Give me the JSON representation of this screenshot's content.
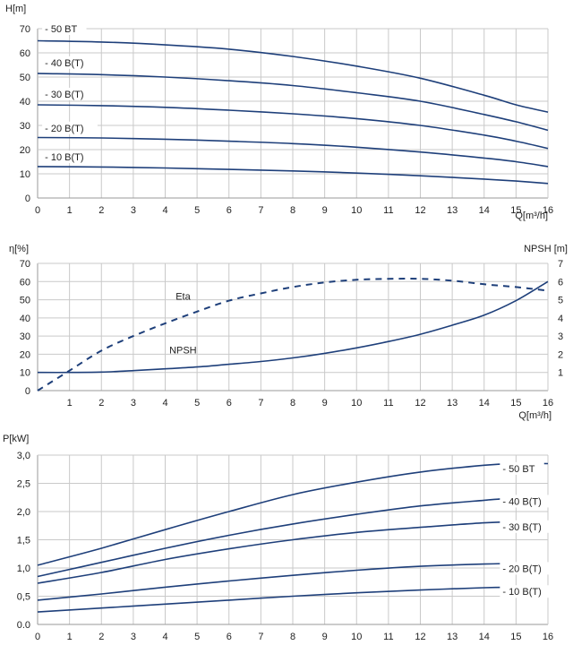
{
  "colors": {
    "curve": "#1e3f7a",
    "grid": "#c9c9c9",
    "text": "#222222"
  },
  "chart_data": [
    {
      "type": "line",
      "ylabel": "H[m]",
      "xlabel": "Q[m³/h]",
      "xlim": [
        0,
        16
      ],
      "ylim": [
        0,
        70
      ],
      "xticks": [
        "0",
        "1",
        "2",
        "3",
        "4",
        "5",
        "6",
        "7",
        "8",
        "9",
        "10",
        "11",
        "12",
        "13",
        "14",
        "15",
        "16"
      ],
      "yticks": [
        "0",
        "10",
        "20",
        "30",
        "40",
        "50",
        "60",
        "70"
      ],
      "grid": true,
      "series": [
        {
          "name": "- 50 BT",
          "x": [
            0,
            2,
            4,
            6,
            8,
            10,
            12,
            14,
            15,
            16
          ],
          "y": [
            65,
            64.5,
            63.3,
            61.5,
            58.5,
            54.5,
            49.5,
            42.5,
            38.5,
            35.5
          ],
          "label_x": 0.2,
          "label_y": 68.5
        },
        {
          "name": "- 40 B(T)",
          "x": [
            0,
            2,
            4,
            6,
            8,
            10,
            12,
            14,
            15,
            16
          ],
          "y": [
            51.5,
            51,
            50,
            48.5,
            46.5,
            43.5,
            40,
            34.5,
            31.5,
            28
          ],
          "label_x": 0.2,
          "label_y": 54.5
        },
        {
          "name": "- 30 B(T)",
          "x": [
            0,
            2,
            4,
            6,
            8,
            10,
            12,
            14,
            15,
            16
          ],
          "y": [
            38.5,
            38.2,
            37.5,
            36.3,
            34.8,
            32.8,
            30,
            26,
            23.5,
            20.5
          ],
          "label_x": 0.2,
          "label_y": 41.5
        },
        {
          "name": "- 20 B(T)",
          "x": [
            0,
            2,
            4,
            6,
            8,
            10,
            12,
            14,
            15,
            16
          ],
          "y": [
            25,
            24.8,
            24.3,
            23.5,
            22.5,
            21,
            19,
            16.5,
            15,
            13
          ],
          "label_x": 0.2,
          "label_y": 27.5
        },
        {
          "name": "- 10 B(T)",
          "x": [
            0,
            2,
            4,
            6,
            8,
            10,
            12,
            14,
            15,
            16
          ],
          "y": [
            13,
            12.8,
            12.4,
            11.8,
            11.2,
            10.3,
            9.2,
            7.8,
            7,
            6
          ],
          "label_x": 0.2,
          "label_y": 15.5
        }
      ]
    },
    {
      "type": "line",
      "ylabel": "η[%]",
      "ylabel_right": "NPSH [m]",
      "xlabel": "Q[m³/h]",
      "xlim": [
        0,
        16
      ],
      "ylim": [
        0,
        70
      ],
      "ylim_right": [
        0,
        7
      ],
      "xticks": [
        "1",
        "2",
        "3",
        "4",
        "5",
        "6",
        "7",
        "8",
        "9",
        "10",
        "11",
        "12",
        "13",
        "14",
        "15",
        "16"
      ],
      "yticks": [
        "0",
        "10",
        "20",
        "30",
        "40",
        "50",
        "60",
        "70"
      ],
      "yticks_right": [
        "1",
        "2",
        "3",
        "4",
        "5",
        "6",
        "7"
      ],
      "grid": true,
      "series": [
        {
          "name": "Eta",
          "axis": "left",
          "dashed": true,
          "x": [
            0,
            1,
            2,
            3,
            4,
            5,
            6,
            7,
            8,
            9,
            10,
            11,
            12,
            13,
            14,
            15,
            16
          ],
          "y": [
            0,
            11,
            22,
            30,
            37,
            43.5,
            49.5,
            53.5,
            57,
            59.5,
            61,
            61.5,
            61.5,
            60.5,
            58.5,
            57,
            55
          ],
          "label_x": 4.3,
          "label_y": 50
        },
        {
          "name": "NPSH",
          "axis": "right",
          "dashed": false,
          "x": [
            0,
            1,
            2,
            3,
            4,
            5,
            6,
            7,
            8,
            9,
            10,
            11,
            12,
            13,
            14,
            15,
            16
          ],
          "y": [
            1,
            1,
            1.02,
            1.1,
            1.2,
            1.3,
            1.45,
            1.6,
            1.8,
            2.05,
            2.35,
            2.7,
            3.1,
            3.6,
            4.15,
            4.95,
            6
          ],
          "label_x": 4.1,
          "label_y": 2.05
        }
      ]
    },
    {
      "type": "line",
      "ylabel": "P[kW]",
      "xlabel": "",
      "xlim": [
        0,
        16
      ],
      "ylim": [
        0,
        3
      ],
      "xticks": [
        "0",
        "1",
        "2",
        "3",
        "4",
        "5",
        "6",
        "7",
        "8",
        "9",
        "10",
        "11",
        "12",
        "13",
        "14",
        "15",
        "16"
      ],
      "yticks": [
        "0.0",
        "0,5",
        "1,0",
        "1,5",
        "2,0",
        "2,5",
        "3,0"
      ],
      "grid": true,
      "series": [
        {
          "name": "- 50 BT",
          "x": [
            0,
            2,
            4,
            6,
            8,
            10,
            12,
            14,
            15,
            16
          ],
          "y": [
            1.05,
            1.35,
            1.68,
            2,
            2.3,
            2.52,
            2.7,
            2.82,
            2.85,
            2.85
          ],
          "label_x": 14.55,
          "label_y": 2.7
        },
        {
          "name": "- 40 B(T)",
          "x": [
            0,
            2,
            4,
            6,
            8,
            10,
            12,
            14,
            15,
            16
          ],
          "y": [
            0.85,
            1.1,
            1.35,
            1.58,
            1.78,
            1.95,
            2.1,
            2.2,
            2.24,
            2.24
          ],
          "label_x": 14.55,
          "label_y": 2.12
        },
        {
          "name": "- 30 B(T)",
          "x": [
            0,
            2,
            4,
            6,
            8,
            10,
            12,
            14,
            15,
            16
          ],
          "y": [
            0.73,
            0.92,
            1.15,
            1.34,
            1.5,
            1.63,
            1.72,
            1.8,
            1.82,
            1.82
          ],
          "label_x": 14.55,
          "label_y": 1.67
        },
        {
          "name": "- 20 B(T)",
          "x": [
            0,
            2,
            4,
            6,
            8,
            10,
            12,
            14,
            15,
            16
          ],
          "y": [
            0.43,
            0.54,
            0.66,
            0.77,
            0.87,
            0.96,
            1.03,
            1.07,
            1.08,
            1.07
          ],
          "label_x": 14.55,
          "label_y": 0.93
        },
        {
          "name": "- 10 B(T)",
          "x": [
            0,
            2,
            4,
            6,
            8,
            10,
            12,
            14,
            15,
            16
          ],
          "y": [
            0.22,
            0.29,
            0.36,
            0.43,
            0.5,
            0.56,
            0.61,
            0.65,
            0.66,
            0.67
          ],
          "label_x": 14.55,
          "label_y": 0.52
        }
      ]
    }
  ]
}
